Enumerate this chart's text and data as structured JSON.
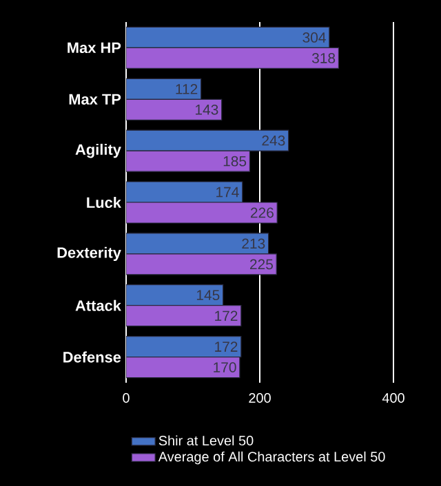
{
  "chart_data": {
    "type": "bar",
    "orientation": "horizontal",
    "categories": [
      "Max HP",
      "Max TP",
      "Agility",
      "Luck",
      "Dexterity",
      "Attack",
      "Defense"
    ],
    "series": [
      {
        "name": "Shir at Level 50",
        "color": "#4472c4",
        "values": [
          304,
          112,
          243,
          174,
          213,
          145,
          172
        ]
      },
      {
        "name": "Average of All Characters at Level 50",
        "color": "#9e5ed6",
        "values": [
          318,
          143,
          185,
          226,
          225,
          172,
          170
        ]
      }
    ],
    "xlim": [
      0,
      400
    ],
    "xticks": [
      0,
      200,
      400
    ],
    "grid": "x",
    "legend": "bottom",
    "data_labels": true
  }
}
